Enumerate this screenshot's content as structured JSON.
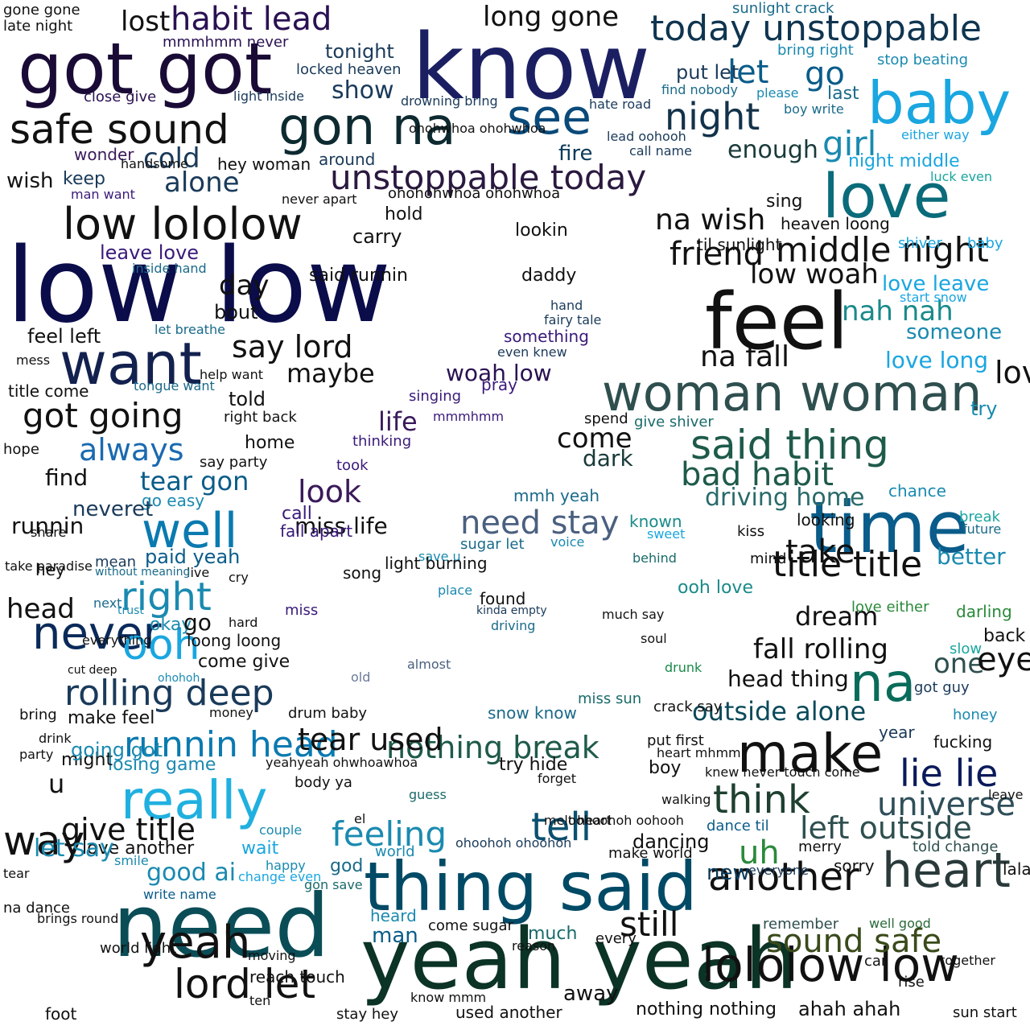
{
  "palette": {
    "navy": "#0b0c4a",
    "purple": "#2a1152",
    "teal": "#0a5b6b",
    "sky": "#1aa6d6",
    "forest": "#1e4a3a",
    "slate": "#2f4f4f",
    "black": "#111111"
  },
  "words": [
    {
      "text": "know",
      "color": "#1b1f62"
    },
    {
      "text": "low low",
      "color": "#0b0c4a"
    },
    {
      "text": "got got",
      "color": "#1a0b36"
    },
    {
      "text": "yeah yeah",
      "color": "#0b3326"
    },
    {
      "text": "need",
      "color": "#0a4d57"
    },
    {
      "text": "thing said",
      "color": "#004a66"
    },
    {
      "text": "time",
      "color": "#0a5c8a"
    },
    {
      "text": "feel",
      "color": "#111111"
    },
    {
      "text": "love",
      "color": "#0a6b7a"
    },
    {
      "text": "baby",
      "color": "#1aa6e0"
    },
    {
      "text": "want",
      "color": "#13214f"
    },
    {
      "text": "woman woman",
      "color": "#2f4f4f"
    },
    {
      "text": "said thing",
      "color": "#1e5a4a"
    },
    {
      "text": "make",
      "color": "#111111"
    },
    {
      "text": "heart",
      "color": "#2a3a3a"
    },
    {
      "text": "lololow low",
      "color": "#111111"
    },
    {
      "text": "really",
      "color": "#20b0e0"
    },
    {
      "text": "unstoppable today",
      "color": "#2a1940"
    },
    {
      "text": "today unstoppable",
      "color": "#0f3550"
    },
    {
      "text": "gon na",
      "color": "#0d2a30"
    },
    {
      "text": "low lololow",
      "color": "#111111"
    },
    {
      "text": "safe sound",
      "color": "#111111"
    },
    {
      "text": "sound safe",
      "color": "#3a4a1a"
    },
    {
      "text": "na",
      "color": "#0a6b5a"
    },
    {
      "text": "see",
      "color": "#0a4a7a"
    },
    {
      "text": "well",
      "color": "#0a7ab0"
    },
    {
      "text": "night",
      "color": "#13324a"
    },
    {
      "text": "lord let",
      "color": "#111111"
    },
    {
      "text": "yeah",
      "color": "#111111"
    },
    {
      "text": "lord",
      "color": "#111111"
    },
    {
      "text": "think",
      "color": "#1e4030"
    },
    {
      "text": "tell",
      "color": "#0a5070"
    },
    {
      "text": "another",
      "color": "#111111"
    },
    {
      "text": "habit lead",
      "color": "#2a1152"
    },
    {
      "text": "long gone",
      "color": "#111111"
    },
    {
      "text": "rolling deep",
      "color": "#1a3a5a"
    },
    {
      "text": "runnin head",
      "color": "#0a7ab0"
    },
    {
      "text": "title title",
      "color": "#111111"
    },
    {
      "text": "middle night",
      "color": "#111111"
    },
    {
      "text": "lie lie",
      "color": "#0a1a5a"
    },
    {
      "text": "universe",
      "color": "#2f4f5a"
    },
    {
      "text": "left outside",
      "color": "#2f4f4f"
    },
    {
      "text": "feeling",
      "color": "#1a8ab0"
    },
    {
      "text": "need stay",
      "color": "#4a6080"
    },
    {
      "text": "nothing break",
      "color": "#1e5a4a"
    },
    {
      "text": "bad habit",
      "color": "#1e5a4a"
    },
    {
      "text": "driving home",
      "color": "#2a6a6a"
    },
    {
      "text": "take",
      "color": "#111111"
    },
    {
      "text": "never",
      "color": "#0a2a5a"
    },
    {
      "text": "way",
      "color": "#111111"
    },
    {
      "text": "say lord",
      "color": "#111111"
    },
    {
      "text": "go",
      "color": "#0a5c8a"
    },
    {
      "text": "let",
      "color": "#0a5c8a"
    },
    {
      "text": "girl",
      "color": "#1a8ab0"
    },
    {
      "text": "uh",
      "color": "#2a8a3a"
    },
    {
      "text": "still",
      "color": "#111111"
    },
    {
      "text": "give title",
      "color": "#111111"
    },
    {
      "text": "look",
      "color": "#3a1a5a"
    },
    {
      "text": "tear gon",
      "color": "#0a5c8a"
    },
    {
      "text": "right",
      "color": "#1a8ab0"
    },
    {
      "text": "ooh",
      "color": "#1aa6e0"
    },
    {
      "text": "always",
      "color": "#1a6ab0"
    },
    {
      "text": "got going",
      "color": "#111111"
    },
    {
      "text": "alone",
      "color": "#1a3a5a"
    },
    {
      "text": "cold",
      "color": "#1a3a5a"
    },
    {
      "text": "enough",
      "color": "#1a3a3a"
    },
    {
      "text": "fire",
      "color": "#0a3a5a"
    },
    {
      "text": "dark",
      "color": "#1a3a3a"
    },
    {
      "text": "come",
      "color": "#111111"
    },
    {
      "text": "life",
      "color": "#3a1a5a"
    },
    {
      "text": "woah low",
      "color": "#2a1152"
    },
    {
      "text": "outside alone",
      "color": "#0a4a5a"
    },
    {
      "text": "fall rolling",
      "color": "#111111"
    },
    {
      "text": "head thing",
      "color": "#111111"
    },
    {
      "text": "dream",
      "color": "#111111"
    },
    {
      "text": "one",
      "color": "#2f4f4f"
    },
    {
      "text": "eye",
      "color": "#111111"
    },
    {
      "text": "friend",
      "color": "#111111"
    },
    {
      "text": "na wish",
      "color": "#111111"
    },
    {
      "text": "na fall",
      "color": "#111111"
    },
    {
      "text": "low woah",
      "color": "#111111"
    },
    {
      "text": "nah nah",
      "color": "#1a8a8a"
    },
    {
      "text": "love leave",
      "color": "#1aa6e0"
    },
    {
      "text": "love long",
      "color": "#1aa6e0"
    },
    {
      "text": "someone",
      "color": "#1a8ab0"
    },
    {
      "text": "love tear",
      "color": "#111111"
    },
    {
      "text": "better",
      "color": "#1a8ab0"
    },
    {
      "text": "maybe",
      "color": "#111111"
    },
    {
      "text": "day",
      "color": "#111111"
    },
    {
      "text": "bout",
      "color": "#111111"
    },
    {
      "text": "hold",
      "color": "#111111"
    },
    {
      "text": "carry",
      "color": "#111111"
    },
    {
      "text": "lookin",
      "color": "#111111"
    },
    {
      "text": "daddy",
      "color": "#111111"
    },
    {
      "text": "said runnin",
      "color": "#111111"
    },
    {
      "text": "show",
      "color": "#1a3a5a"
    },
    {
      "text": "tonight",
      "color": "#1a3a5a"
    },
    {
      "text": "lost",
      "color": "#111111"
    },
    {
      "text": "around",
      "color": "#1a3a5a"
    },
    {
      "text": "hey woman",
      "color": "#111111"
    },
    {
      "text": "keep",
      "color": "#1a3a5a"
    },
    {
      "text": "wonder",
      "color": "#3a1a5a"
    },
    {
      "text": "leave love",
      "color": "#3a1a7a"
    },
    {
      "text": "feel left",
      "color": "#111111"
    },
    {
      "text": "title come",
      "color": "#111111"
    },
    {
      "text": "told",
      "color": "#111111"
    },
    {
      "text": "home",
      "color": "#111111"
    },
    {
      "text": "say party",
      "color": "#111111"
    },
    {
      "text": "paid yeah",
      "color": "#0a5c8a"
    },
    {
      "text": "go easy",
      "color": "#1a8ab0"
    },
    {
      "text": "okay",
      "color": "#1a8ab0"
    },
    {
      "text": "loong loong",
      "color": "#111111"
    },
    {
      "text": "come give",
      "color": "#111111"
    },
    {
      "text": "make feel",
      "color": "#111111"
    },
    {
      "text": "losing game",
      "color": "#1a8ab0"
    },
    {
      "text": "might",
      "color": "#111111"
    },
    {
      "text": "good ai",
      "color": "#1a8ab0"
    },
    {
      "text": "love another",
      "color": "#111111"
    },
    {
      "text": "yeahyeah ohwhoawhoa",
      "color": "#111111"
    },
    {
      "text": "melt heart",
      "color": "#111111"
    },
    {
      "text": "ooh love",
      "color": "#1a8a8a"
    },
    {
      "text": "dancing",
      "color": "#111111"
    },
    {
      "text": "make world",
      "color": "#111111"
    },
    {
      "text": "new",
      "color": "#0a3a5a"
    },
    {
      "text": "sorry",
      "color": "#111111"
    },
    {
      "text": "merry",
      "color": "#111111"
    },
    {
      "text": "man",
      "color": "#0a5c8a"
    },
    {
      "text": "heard",
      "color": "#1a8ab0"
    },
    {
      "text": "much",
      "color": "#1a6a6a"
    },
    {
      "text": "reason",
      "color": "#111111"
    },
    {
      "text": "every",
      "color": "#111111"
    },
    {
      "text": "away",
      "color": "#111111"
    },
    {
      "text": "used another",
      "color": "#111111"
    },
    {
      "text": "nothing nothing",
      "color": "#111111"
    },
    {
      "text": "ahah ahah",
      "color": "#111111"
    },
    {
      "text": "stay hey",
      "color": "#111111"
    },
    {
      "text": "know mmm",
      "color": "#111111"
    },
    {
      "text": "come sugar",
      "color": "#111111"
    },
    {
      "text": "world light",
      "color": "#111111"
    },
    {
      "text": "ten",
      "color": "#111111"
    },
    {
      "text": "reach touch",
      "color": "#111111"
    },
    {
      "text": "moving",
      "color": "#111111"
    },
    {
      "text": "foot",
      "color": "#111111"
    },
    {
      "text": "brings round",
      "color": "#111111"
    },
    {
      "text": "na dance",
      "color": "#111111"
    },
    {
      "text": "write name",
      "color": "#0a5c8a"
    },
    {
      "text": "smile",
      "color": "#1a8ab0"
    },
    {
      "text": "wait",
      "color": "#1aa6e0"
    },
    {
      "text": "couple",
      "color": "#1a8ab0"
    },
    {
      "text": "song",
      "color": "#111111"
    },
    {
      "text": "found",
      "color": "#111111"
    },
    {
      "text": "place",
      "color": "#1a8ab0"
    },
    {
      "text": "voice",
      "color": "#1a8ab0"
    },
    {
      "text": "sugar let",
      "color": "#1a6a8a"
    },
    {
      "text": "mmh yeah",
      "color": "#1a6a8a"
    },
    {
      "text": "save u",
      "color": "#1a8ab0"
    },
    {
      "text": "pray",
      "color": "#3a1a7a"
    },
    {
      "text": "something",
      "color": "#3a1a7a"
    },
    {
      "text": "singing",
      "color": "#3a1a7a"
    },
    {
      "text": "thinking",
      "color": "#3a1a7a"
    },
    {
      "text": "took",
      "color": "#3a1a7a"
    },
    {
      "text": "call",
      "color": "#3a1a7a"
    },
    {
      "text": "mmmhmm",
      "color": "#3a1a7a"
    },
    {
      "text": "hand",
      "color": "#1a3a5a"
    },
    {
      "text": "fairy tale",
      "color": "#1a3a5a"
    },
    {
      "text": "even knew",
      "color": "#1a3a5a"
    },
    {
      "text": "spend",
      "color": "#111111"
    },
    {
      "text": "give shiver",
      "color": "#1a6a6a"
    },
    {
      "text": "known",
      "color": "#1a8a8a"
    },
    {
      "text": "sweet",
      "color": "#1aa6e0"
    },
    {
      "text": "behind",
      "color": "#1a6a6a"
    },
    {
      "text": "soul",
      "color": "#111111"
    },
    {
      "text": "drunk",
      "color": "#1a8a4a"
    },
    {
      "text": "much say",
      "color": "#111111"
    },
    {
      "text": "miss sun",
      "color": "#1a6a6a"
    },
    {
      "text": "snow know",
      "color": "#1a6a8a"
    },
    {
      "text": "try hide",
      "color": "#111111"
    },
    {
      "text": "forget",
      "color": "#111111"
    },
    {
      "text": "boy",
      "color": "#111111"
    },
    {
      "text": "crack say",
      "color": "#111111"
    },
    {
      "text": "put first",
      "color": "#111111"
    },
    {
      "text": "heart mhmm",
      "color": "#111111"
    },
    {
      "text": "knew never touch come",
      "color": "#111111"
    },
    {
      "text": "walking",
      "color": "#111111"
    },
    {
      "text": "dance til",
      "color": "#0a5c8a"
    },
    {
      "text": "everyone",
      "color": "#1a3a5a"
    },
    {
      "text": "remember",
      "color": "#2f4f4f"
    },
    {
      "text": "heaven loong",
      "color": "#111111"
    },
    {
      "text": "sing",
      "color": "#111111"
    },
    {
      "text": "til sunlight",
      "color": "#111111"
    },
    {
      "text": "kiss",
      "color": "#111111"
    },
    {
      "text": "looking",
      "color": "#111111"
    },
    {
      "text": "mind",
      "color": "#111111"
    },
    {
      "text": "chance",
      "color": "#1a8ab0"
    },
    {
      "text": "break",
      "color": "#1aa6a0"
    },
    {
      "text": "future",
      "color": "#1a6a8a"
    },
    {
      "text": "year",
      "color": "#1a3a5a"
    },
    {
      "text": "fucking",
      "color": "#111111"
    },
    {
      "text": "darling",
      "color": "#2a8a3a"
    },
    {
      "text": "love either",
      "color": "#2a8a3a"
    },
    {
      "text": "back",
      "color": "#111111"
    },
    {
      "text": "slow",
      "color": "#1aa6a0"
    },
    {
      "text": "got guy",
      "color": "#1a3a5a"
    },
    {
      "text": "honey",
      "color": "#1a8ab0"
    },
    {
      "text": "try",
      "color": "#1a8ab0"
    },
    {
      "text": "leave",
      "color": "#111111"
    },
    {
      "text": "told change",
      "color": "#2f4f4f"
    },
    {
      "text": "well good",
      "color": "#2a6a3a"
    },
    {
      "text": "car",
      "color": "#111111"
    },
    {
      "text": "rise",
      "color": "#111111"
    },
    {
      "text": "together",
      "color": "#111111"
    },
    {
      "text": "sun start",
      "color": "#111111"
    },
    {
      "text": "lalala low",
      "color": "#111111"
    },
    {
      "text": "stop beating",
      "color": "#1a8ab0"
    },
    {
      "text": "last",
      "color": "#1a6a8a"
    },
    {
      "text": "boy write",
      "color": "#1a6a8a"
    },
    {
      "text": "please",
      "color": "#1a8ab0"
    },
    {
      "text": "bring right",
      "color": "#1a8ab0"
    },
    {
      "text": "sunlight crack",
      "color": "#1a6a8a"
    },
    {
      "text": "night middle",
      "color": "#1aa6e0"
    },
    {
      "text": "either way",
      "color": "#1aa6e0"
    },
    {
      "text": "luck even",
      "color": "#1aa6a0"
    },
    {
      "text": "shiver",
      "color": "#1aa6e0"
    },
    {
      "text": "baby",
      "color": "#1aa6e0"
    },
    {
      "text": "start snow",
      "color": "#1aa6e0"
    },
    {
      "text": "put let",
      "color": "#1a3a5a"
    },
    {
      "text": "find nobody",
      "color": "#1a6a8a"
    },
    {
      "text": "hate road",
      "color": "#1a3a5a"
    },
    {
      "text": "lead oohooh",
      "color": "#1a3a5a"
    },
    {
      "text": "call name",
      "color": "#1a3a5a"
    },
    {
      "text": "drowning bring",
      "color": "#1a3a5a"
    },
    {
      "text": "close give",
      "color": "#2a1152"
    },
    {
      "text": "light inside",
      "color": "#1a3a5a"
    },
    {
      "text": "locked heaven",
      "color": "#1a3a5a"
    },
    {
      "text": "mmmhmm never",
      "color": "#2a1152"
    },
    {
      "text": "late night",
      "color": "#111111"
    },
    {
      "text": "gone gone",
      "color": "#111111"
    },
    {
      "text": "man want",
      "color": "#3a1a7a"
    },
    {
      "text": "inside hand",
      "color": "#1a6a8a"
    },
    {
      "text": "never apart",
      "color": "#111111"
    },
    {
      "text": "help want",
      "color": "#111111"
    },
    {
      "text": "right back",
      "color": "#111111"
    },
    {
      "text": "hope",
      "color": "#111111"
    },
    {
      "text": "share",
      "color": "#111111"
    },
    {
      "text": "hey",
      "color": "#111111"
    },
    {
      "text": "cry",
      "color": "#111111"
    },
    {
      "text": "live",
      "color": "#111111"
    },
    {
      "text": "hard",
      "color": "#111111"
    },
    {
      "text": "money",
      "color": "#111111"
    },
    {
      "text": "drum baby",
      "color": "#111111"
    },
    {
      "text": "body ya",
      "color": "#111111"
    },
    {
      "text": "guess",
      "color": "#1a6a6a"
    },
    {
      "text": "el",
      "color": "#111111"
    },
    {
      "text": "god",
      "color": "#1a6a8a"
    },
    {
      "text": "world",
      "color": "#1a8ab0"
    },
    {
      "text": "happy",
      "color": "#1a8ab0"
    },
    {
      "text": "change even",
      "color": "#1aa6e0"
    },
    {
      "text": "gon save",
      "color": "#1a6a6a"
    },
    {
      "text": "ohoohoh ohoohoh",
      "color": "#1a3a5a"
    },
    {
      "text": "oohoohoh oohooh",
      "color": "#111111"
    },
    {
      "text": "tear used",
      "color": "#111111"
    },
    {
      "text": "miss life",
      "color": "#111111"
    },
    {
      "text": "fall apart",
      "color": "#3a1a7a"
    },
    {
      "text": "light burning",
      "color": "#111111"
    },
    {
      "text": "ohohohwhoa ohohwhoa",
      "color": "#111111"
    },
    {
      "text": "ohohwhoa ohohwhoa",
      "color": "#111111"
    },
    {
      "text": "almost",
      "color": "#4a6080"
    },
    {
      "text": "old",
      "color": "#6a7a9a"
    },
    {
      "text": "driving",
      "color": "#1a6a8a"
    },
    {
      "text": "kinda empty",
      "color": "#1a3a5a"
    },
    {
      "text": "miss",
      "color": "#3a1a7a"
    },
    {
      "text": "mean",
      "color": "#1a3a5a"
    },
    {
      "text": "next",
      "color": "#1a6a8a"
    },
    {
      "text": "ohohoh",
      "color": "#1a8ab0"
    },
    {
      "text": "cut deep",
      "color": "#111111"
    },
    {
      "text": "everything",
      "color": "#111111"
    },
    {
      "text": "trust",
      "color": "#1a8ab0"
    },
    {
      "text": "without meaning",
      "color": "#1a6a8a"
    },
    {
      "text": "tongue want",
      "color": "#1a6a8a"
    },
    {
      "text": "let breathe",
      "color": "#1a6a8a"
    },
    {
      "text": "tear",
      "color": "#111111"
    },
    {
      "text": "mess",
      "color": "#111111"
    },
    {
      "text": "drink",
      "color": "#111111"
    },
    {
      "text": "take paradise",
      "color": "#111111"
    },
    {
      "text": "handsome",
      "color": "#111111"
    },
    {
      "text": "wish",
      "color": "#111111"
    },
    {
      "text": "go",
      "color": "#111111"
    },
    {
      "text": "runnin",
      "color": "#111111"
    },
    {
      "text": "find",
      "color": "#111111"
    },
    {
      "text": "head",
      "color": "#111111"
    },
    {
      "text": "neveret",
      "color": "#1a3a5a"
    },
    {
      "text": "going got",
      "color": "#1a8ab0"
    },
    {
      "text": "let say",
      "color": "#1a8ab0"
    },
    {
      "text": "u",
      "color": "#111111"
    },
    {
      "text": "party",
      "color": "#111111"
    },
    {
      "text": "bring",
      "color": "#111111"
    }
  ]
}
